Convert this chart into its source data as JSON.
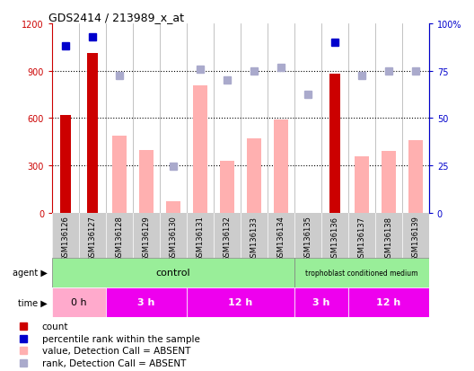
{
  "title": "GDS2414 / 213989_x_at",
  "samples": [
    "GSM136126",
    "GSM136127",
    "GSM136128",
    "GSM136129",
    "GSM136130",
    "GSM136131",
    "GSM136132",
    "GSM136133",
    "GSM136134",
    "GSM136135",
    "GSM136136",
    "GSM136137",
    "GSM136138",
    "GSM136139"
  ],
  "count_values": [
    620,
    1010,
    null,
    null,
    null,
    null,
    null,
    null,
    null,
    null,
    880,
    null,
    null,
    null
  ],
  "percentile_rank_values": [
    88,
    93,
    null,
    null,
    null,
    null,
    null,
    null,
    null,
    null,
    90,
    null,
    null,
    null
  ],
  "value_absent": [
    null,
    null,
    490,
    400,
    75,
    810,
    330,
    470,
    590,
    null,
    null,
    360,
    390,
    460
  ],
  "rank_absent": [
    null,
    null,
    72.5,
    null,
    24.6,
    75.8,
    70.0,
    75.0,
    76.7,
    62.5,
    null,
    72.5,
    75.0,
    75.0
  ],
  "percentile_rank_pct": [
    88,
    93,
    null,
    null,
    null,
    null,
    null,
    null,
    null,
    null,
    90,
    null,
    null,
    null
  ],
  "ylim_left": [
    0,
    1200
  ],
  "ylim_right": [
    0,
    100
  ],
  "yticks_left": [
    0,
    300,
    600,
    900,
    1200
  ],
  "yticks_right": [
    0,
    25,
    50,
    75,
    100
  ],
  "ytick_labels_left": [
    "0",
    "300",
    "600",
    "900",
    "1200"
  ],
  "ytick_labels_right": [
    "0",
    "25",
    "50",
    "75",
    "100%"
  ],
  "count_color": "#CC0000",
  "percentile_color": "#0000CC",
  "value_absent_color": "#FFB0B0",
  "rank_absent_color": "#AAAACC",
  "bg_color": "#FFFFFF",
  "plot_bg_color": "#FFFFFF",
  "axis_color_left": "#CC0000",
  "axis_color_right": "#0000CC",
  "sample_bg_color": "#CCCCCC",
  "agent_control_color": "#99EE99",
  "agent_tcm_color": "#99EE99",
  "time_0h_color": "#FFAACC",
  "time_other_color": "#EE00EE",
  "grid_dotted_color": "#000000",
  "separator_color": "#AAAAAA"
}
